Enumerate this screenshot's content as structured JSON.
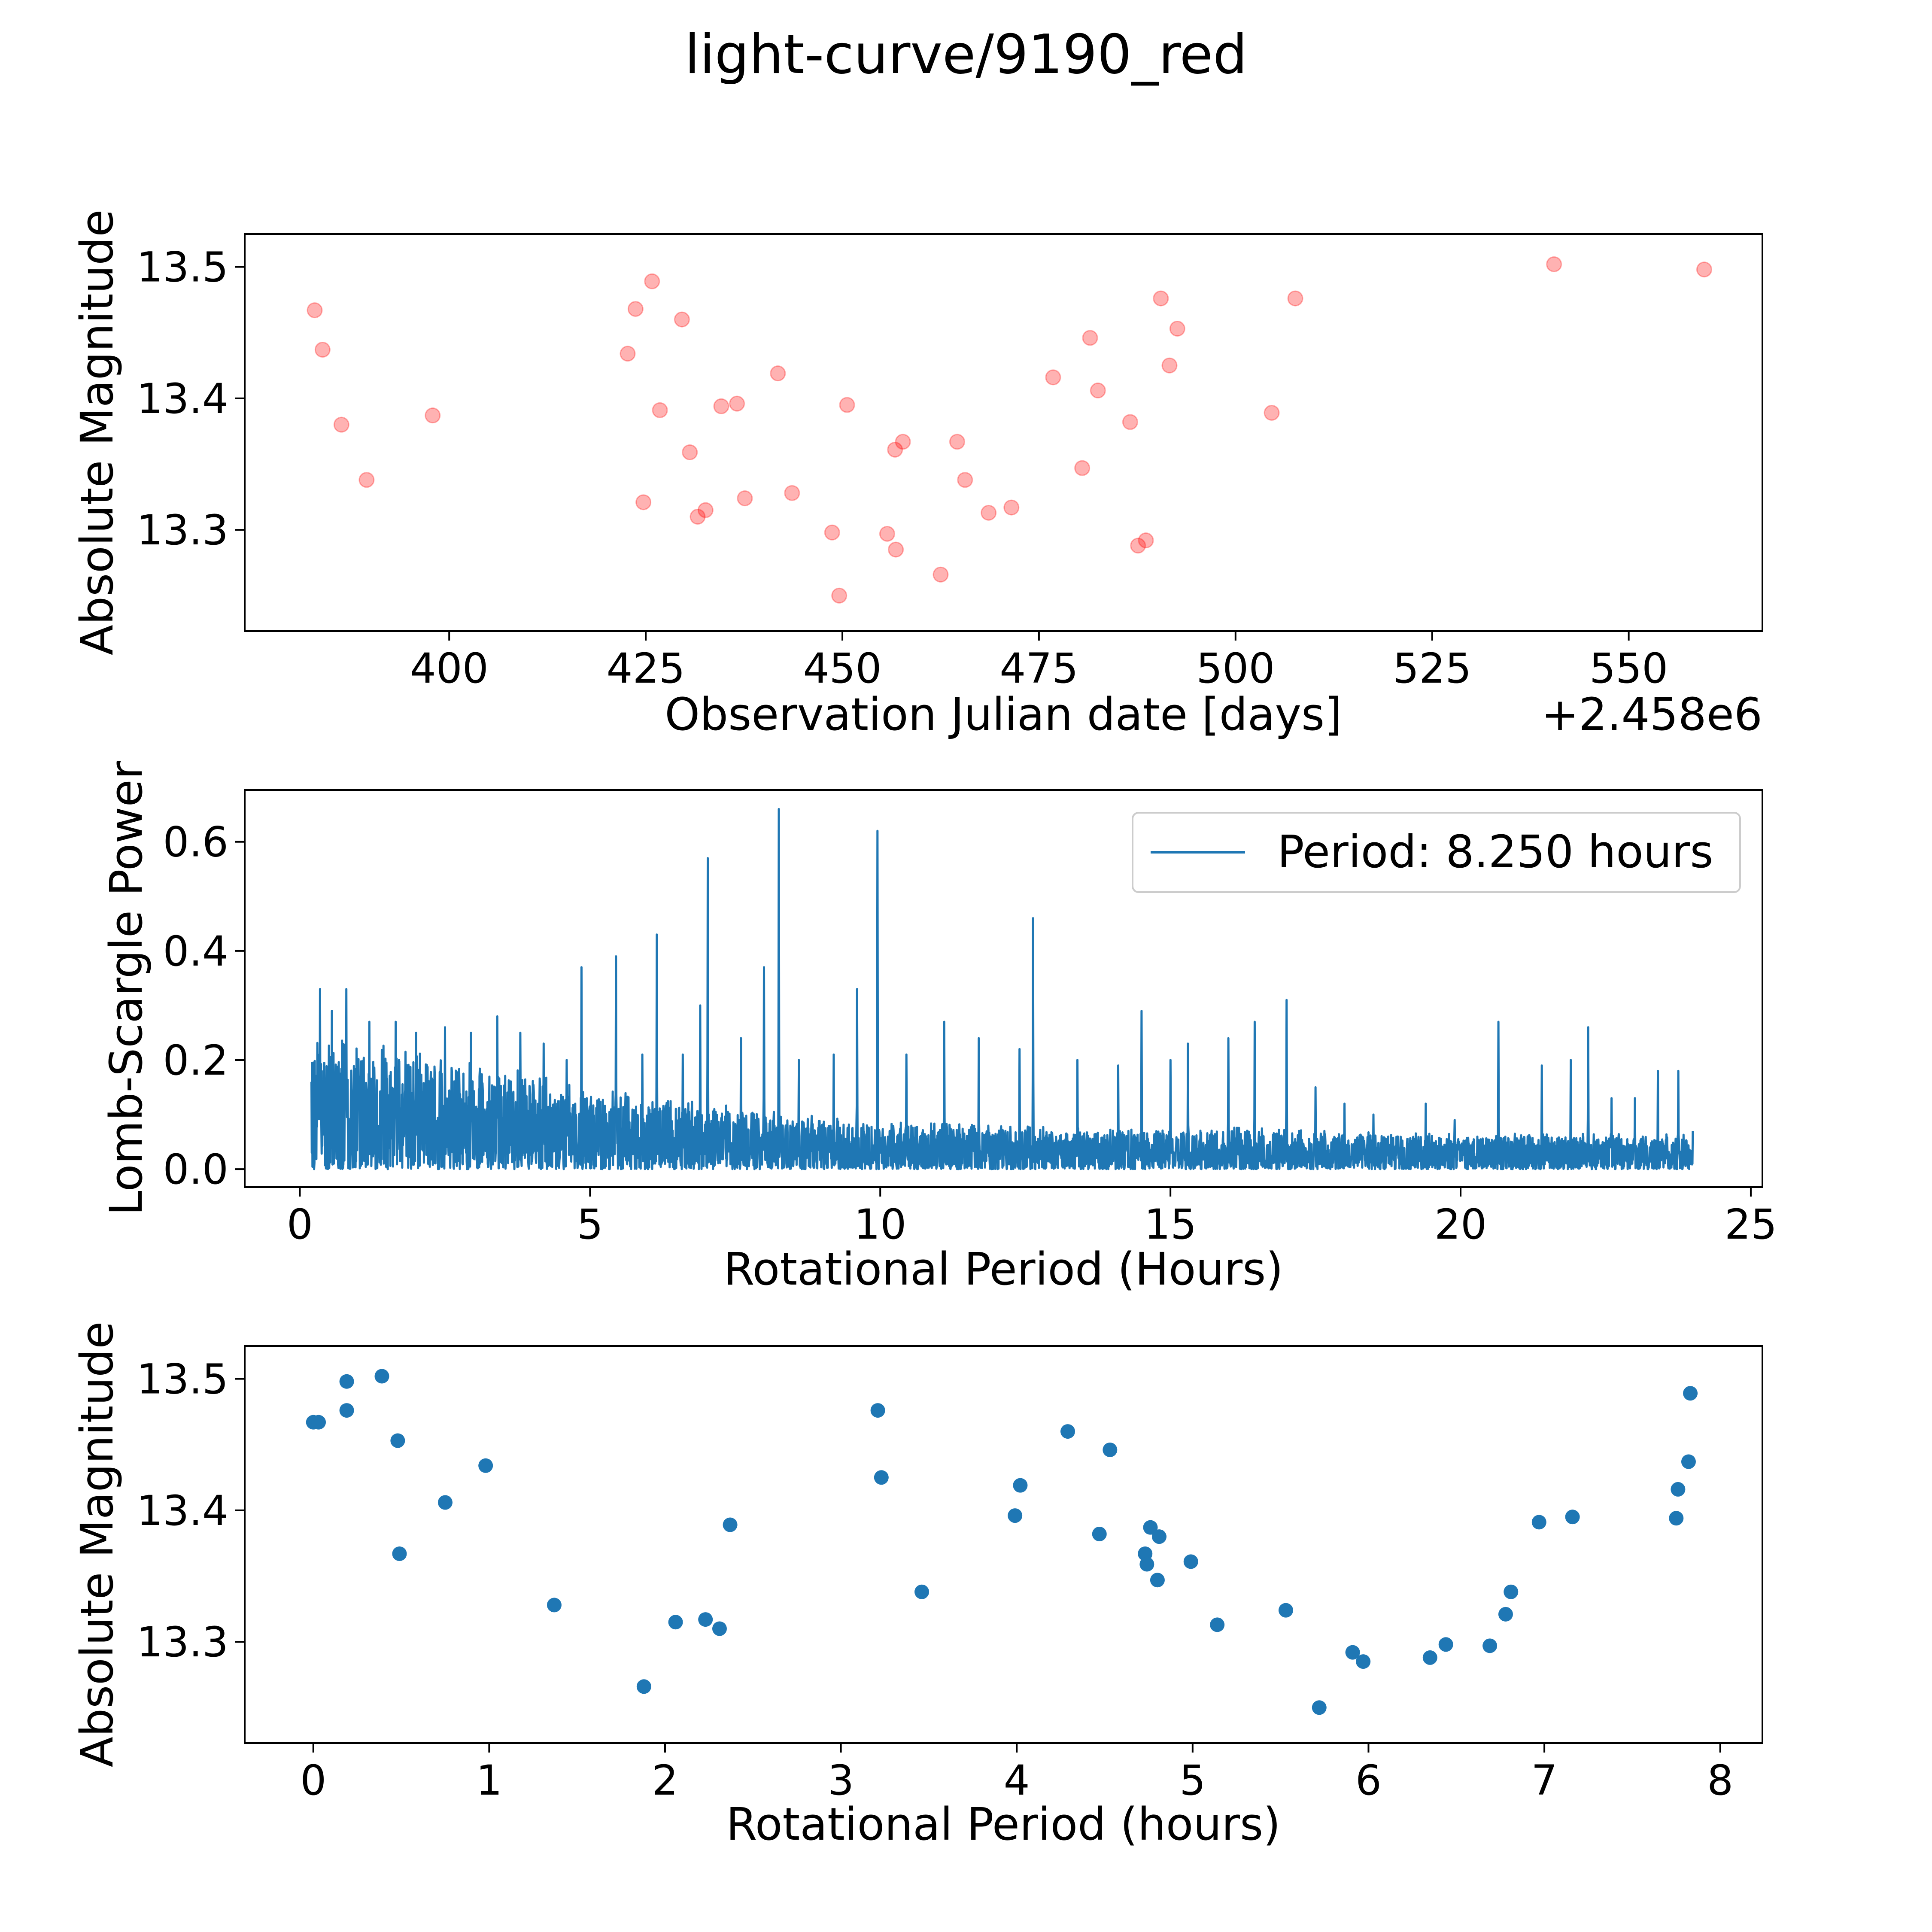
{
  "figure": {
    "title": "light-curve/9190_red"
  },
  "chart_data": [
    {
      "id": "raw",
      "type": "scatter",
      "xlabel": "Observation Julian date [days]",
      "ylabel": "Absolute Magnitude",
      "x_offset_label": "+2.458e6",
      "xlim": [
        374,
        567
      ],
      "ylim": [
        13.223,
        13.525
      ],
      "xticks": [
        400,
        425,
        450,
        475,
        500,
        525,
        550
      ],
      "xtick_labels": [
        "400",
        "425",
        "450",
        "475",
        "500",
        "525",
        "550"
      ],
      "yticks": [
        13.3,
        13.4,
        13.5
      ],
      "ytick_labels": [
        "13.3",
        "13.4",
        "13.5"
      ],
      "color": "#ff0000",
      "alpha": 0.3,
      "x": [
        382.9,
        383.9,
        386.3,
        389.5,
        397.9,
        422.7,
        423.7,
        424.7,
        425.8,
        426.8,
        429.6,
        430.6,
        431.6,
        432.6,
        434.6,
        436.6,
        437.6,
        441.8,
        443.6,
        448.7,
        449.6,
        450.6,
        455.7,
        456.7,
        456.8,
        457.7,
        462.5,
        464.6,
        465.6,
        468.6,
        471.5,
        476.8,
        480.5,
        481.5,
        482.5,
        486.6,
        487.6,
        488.6,
        490.5,
        491.6,
        492.6,
        504.6,
        507.6,
        540.5,
        559.6
      ],
      "y": [
        13.467,
        13.437,
        13.38,
        13.338,
        13.387,
        13.434,
        13.468,
        13.321,
        13.489,
        13.391,
        13.46,
        13.359,
        13.31,
        13.315,
        13.394,
        13.396,
        13.324,
        13.419,
        13.328,
        13.298,
        13.25,
        13.395,
        13.297,
        13.361,
        13.285,
        13.367,
        13.266,
        13.367,
        13.338,
        13.313,
        13.317,
        13.416,
        13.347,
        13.446,
        13.406,
        13.382,
        13.288,
        13.292,
        13.476,
        13.425,
        13.453,
        13.389,
        13.476,
        13.502,
        13.498
      ]
    },
    {
      "id": "periodogram",
      "type": "line",
      "xlabel": "Rotational Period (Hours)",
      "ylabel": "Lomb-Scargle Power",
      "xlim": [
        -0.95,
        25.2
      ],
      "ylim": [
        -0.033,
        0.695
      ],
      "xticks": [
        0,
        5,
        10,
        15,
        20,
        25
      ],
      "xtick_labels": [
        "0",
        "5",
        "10",
        "15",
        "20",
        "25"
      ],
      "yticks": [
        0.0,
        0.2,
        0.4,
        0.6
      ],
      "ytick_labels": [
        "0.0",
        "0.2",
        "0.4",
        "0.6"
      ],
      "color": "#1f77b4",
      "legend": {
        "label": "Period: 8.250 hours",
        "location": "top-right"
      },
      "x_range": [
        0.2,
        24.0
      ],
      "peaks": [
        {
          "x": 0.35,
          "y": 0.33
        },
        {
          "x": 0.55,
          "y": 0.29
        },
        {
          "x": 0.8,
          "y": 0.33
        },
        {
          "x": 1.2,
          "y": 0.27
        },
        {
          "x": 1.65,
          "y": 0.27
        },
        {
          "x": 2.0,
          "y": 0.25
        },
        {
          "x": 2.5,
          "y": 0.26
        },
        {
          "x": 2.95,
          "y": 0.25
        },
        {
          "x": 3.4,
          "y": 0.28
        },
        {
          "x": 3.8,
          "y": 0.25
        },
        {
          "x": 4.2,
          "y": 0.23
        },
        {
          "x": 4.6,
          "y": 0.2
        },
        {
          "x": 4.85,
          "y": 0.37
        },
        {
          "x": 5.45,
          "y": 0.39
        },
        {
          "x": 5.9,
          "y": 0.21
        },
        {
          "x": 6.15,
          "y": 0.43
        },
        {
          "x": 6.6,
          "y": 0.21
        },
        {
          "x": 6.9,
          "y": 0.3
        },
        {
          "x": 7.03,
          "y": 0.57
        },
        {
          "x": 7.6,
          "y": 0.24
        },
        {
          "x": 8.0,
          "y": 0.37
        },
        {
          "x": 8.25,
          "y": 0.66
        },
        {
          "x": 8.6,
          "y": 0.2
        },
        {
          "x": 9.2,
          "y": 0.21
        },
        {
          "x": 9.6,
          "y": 0.33
        },
        {
          "x": 9.95,
          "y": 0.62
        },
        {
          "x": 10.45,
          "y": 0.21
        },
        {
          "x": 11.1,
          "y": 0.27
        },
        {
          "x": 11.7,
          "y": 0.24
        },
        {
          "x": 12.4,
          "y": 0.22
        },
        {
          "x": 12.63,
          "y": 0.46
        },
        {
          "x": 13.4,
          "y": 0.2
        },
        {
          "x": 14.1,
          "y": 0.19
        },
        {
          "x": 14.5,
          "y": 0.29
        },
        {
          "x": 15.0,
          "y": 0.2
        },
        {
          "x": 15.3,
          "y": 0.23
        },
        {
          "x": 16.0,
          "y": 0.24
        },
        {
          "x": 16.45,
          "y": 0.27
        },
        {
          "x": 17.0,
          "y": 0.31
        },
        {
          "x": 17.5,
          "y": 0.15
        },
        {
          "x": 18.0,
          "y": 0.12
        },
        {
          "x": 18.5,
          "y": 0.1
        },
        {
          "x": 19.4,
          "y": 0.12
        },
        {
          "x": 19.9,
          "y": 0.09
        },
        {
          "x": 20.65,
          "y": 0.27
        },
        {
          "x": 21.4,
          "y": 0.19
        },
        {
          "x": 21.9,
          "y": 0.2
        },
        {
          "x": 22.2,
          "y": 0.26
        },
        {
          "x": 22.6,
          "y": 0.13
        },
        {
          "x": 23.0,
          "y": 0.13
        },
        {
          "x": 23.4,
          "y": 0.18
        },
        {
          "x": 23.75,
          "y": 0.18
        }
      ],
      "noise_envelope": [
        [
          0.2,
          0.22
        ],
        [
          2.0,
          0.2
        ],
        [
          4.0,
          0.16
        ],
        [
          6.0,
          0.12
        ],
        [
          8.0,
          0.1
        ],
        [
          10.0,
          0.08
        ],
        [
          13.0,
          0.07
        ],
        [
          16.0,
          0.07
        ],
        [
          19.0,
          0.06
        ],
        [
          24.0,
          0.06
        ]
      ]
    },
    {
      "id": "folded",
      "type": "scatter",
      "xlabel": "Rotational Period (hours)",
      "ylabel": "Absolute Magnitude",
      "xlim": [
        -0.39,
        8.24
      ],
      "ylim": [
        13.223,
        13.525
      ],
      "xticks": [
        0,
        1,
        2,
        3,
        4,
        5,
        6,
        7,
        8
      ],
      "xtick_labels": [
        "0",
        "1",
        "2",
        "3",
        "4",
        "5",
        "6",
        "7",
        "8"
      ],
      "yticks": [
        13.3,
        13.4,
        13.5
      ],
      "ytick_labels": [
        "13.3",
        "13.4",
        "13.5"
      ],
      "color": "#1f77b4",
      "x": [
        0.0,
        0.03,
        0.19,
        0.19,
        0.39,
        0.48,
        0.49,
        0.75,
        0.98,
        1.37,
        1.88,
        2.06,
        2.23,
        2.31,
        2.37,
        3.21,
        3.23,
        3.46,
        3.99,
        4.02,
        4.29,
        4.47,
        4.53,
        4.73,
        4.74,
        4.76,
        4.81,
        4.8,
        4.99,
        5.14,
        5.53,
        5.72,
        5.91,
        5.97,
        6.35,
        6.44,
        6.69,
        6.78,
        6.81,
        6.97,
        7.16,
        7.75,
        7.76,
        7.82,
        7.83
      ],
      "y": [
        13.467,
        13.467,
        13.498,
        13.476,
        13.502,
        13.453,
        13.367,
        13.406,
        13.434,
        13.328,
        13.266,
        13.315,
        13.317,
        13.31,
        13.389,
        13.476,
        13.425,
        13.338,
        13.396,
        13.419,
        13.46,
        13.382,
        13.446,
        13.367,
        13.359,
        13.387,
        13.38,
        13.347,
        13.361,
        13.313,
        13.324,
        13.25,
        13.292,
        13.285,
        13.288,
        13.298,
        13.297,
        13.321,
        13.338,
        13.391,
        13.395,
        13.394,
        13.416,
        13.437,
        13.489
      ]
    }
  ]
}
